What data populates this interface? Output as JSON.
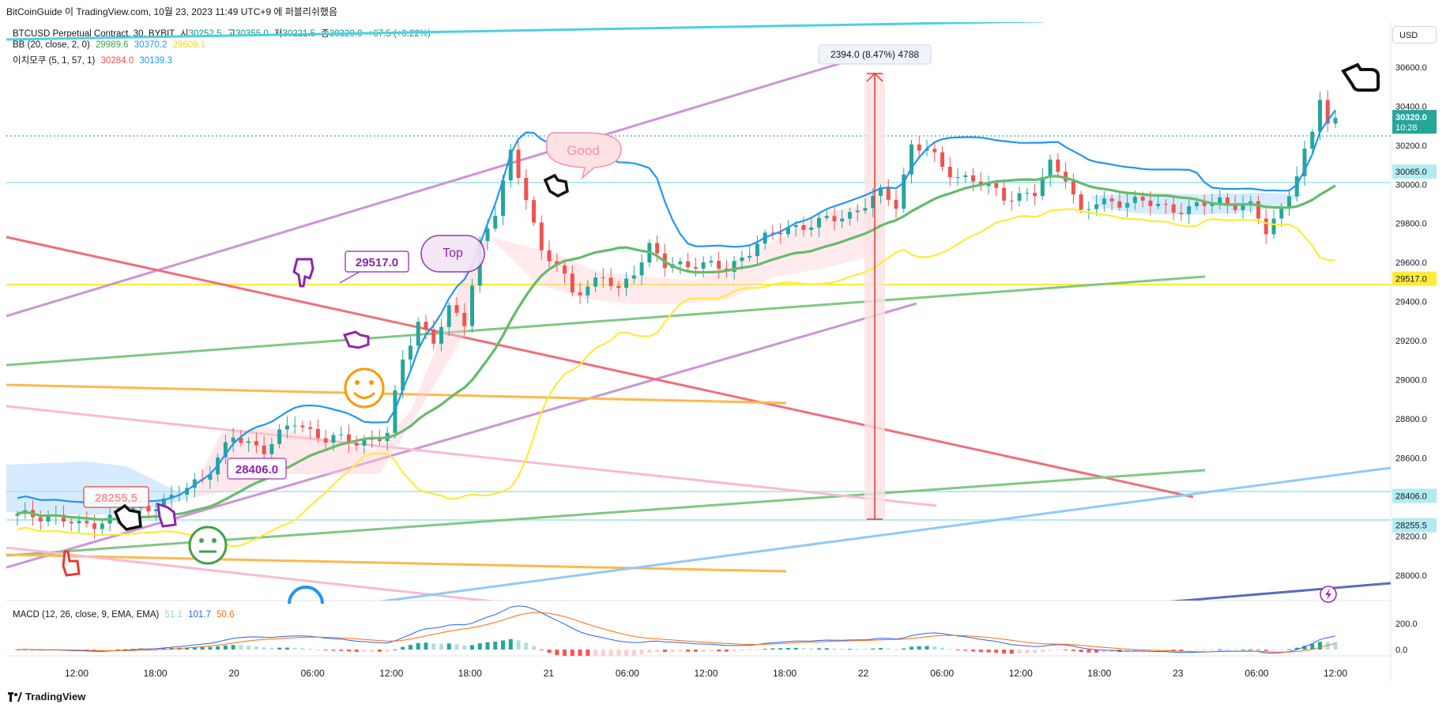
{
  "header": {
    "text": "BitCoinGuide 이 TradingView.com, 10월 23, 2023 11:49 UTC+9 에 퍼블리쉬했음"
  },
  "legend": {
    "symbol": "BTCUSD Perpetual Contract, 30, BYBIT",
    "open_label": "시",
    "open": "30252.5",
    "high_label": "고",
    "high": "30355.0",
    "low_label": "저",
    "low": "30221.5",
    "close_label": "종",
    "close": "30320.0",
    "change": "+67.5 (+0.22%)",
    "bb_label": "BB (20, close, 2, 0)",
    "bb_basis": "29989.6",
    "bb_upper": "30370.2",
    "bb_lower": "29609.1",
    "ichi_label": "이치모쿠 (5, 1, 57, 1)",
    "ichi_a": "30284.0",
    "ichi_b": "30139.3",
    "macd_label": "MACD (12, 26, close, 9, EMA, EMA)",
    "macd_hist": "51.1",
    "macd_macd": "101.7",
    "macd_signal": "50.6"
  },
  "currency": "USD",
  "measure_label": "2394.0 (8.47%) 4788",
  "annotations": {
    "good": "Good",
    "top": "Top",
    "level_29517": "29517.0",
    "level_28406": "28406.0",
    "level_28255": "28255.5"
  },
  "footer": {
    "brand": "TradingView"
  },
  "colors": {
    "up": "#26a69a",
    "down": "#ef5350",
    "bb_basis": "#4caf50",
    "bb_upper": "#2196f3",
    "bb_lower": "#ffeb3b",
    "macd": "#2962ff",
    "signal": "#ff6d00"
  },
  "chart_data": {
    "type": "candlestick",
    "timeframe": "30",
    "x_ticks": [
      "12:00",
      "18:00",
      "20",
      "06:00",
      "12:00",
      "18:00",
      "21",
      "06:00",
      "12:00",
      "18:00",
      "22",
      "06:00",
      "12:00",
      "18:00",
      "23",
      "06:00",
      "12:00"
    ],
    "y_ticks": [
      28000.0,
      28200.0,
      28400.0,
      28600.0,
      28800.0,
      29000.0,
      29200.0,
      29400.0,
      29600.0,
      29800.0,
      30000.0,
      30200.0,
      30400.0,
      30600.0
    ],
    "ylim": [
      27870,
      30830
    ],
    "last_price": "30320.0",
    "countdown": "10:28",
    "price_tags": [
      "30065.0",
      "29517.0",
      "28406.0",
      "28255.5"
    ],
    "close_path": [
      {
        "t": 0,
        "v": 28300
      },
      {
        "t": 4,
        "v": 28310
      },
      {
        "t": 8,
        "v": 28250
      },
      {
        "t": 12,
        "v": 28290
      },
      {
        "t": 16,
        "v": 28340
      },
      {
        "t": 20,
        "v": 28390
      },
      {
        "t": 24,
        "v": 28500
      },
      {
        "t": 28,
        "v": 28700
      },
      {
        "t": 32,
        "v": 28650
      },
      {
        "t": 36,
        "v": 28780
      },
      {
        "t": 40,
        "v": 28700
      },
      {
        "t": 44,
        "v": 28680
      },
      {
        "t": 48,
        "v": 28720
      },
      {
        "t": 50,
        "v": 29100
      },
      {
        "t": 52,
        "v": 29300
      },
      {
        "t": 54,
        "v": 29200
      },
      {
        "t": 56,
        "v": 29350
      },
      {
        "t": 58,
        "v": 29300
      },
      {
        "t": 60,
        "v": 29700
      },
      {
        "t": 62,
        "v": 29850
      },
      {
        "t": 64,
        "v": 30150
      },
      {
        "t": 66,
        "v": 29950
      },
      {
        "t": 68,
        "v": 29650
      },
      {
        "t": 70,
        "v": 29580
      },
      {
        "t": 72,
        "v": 29450
      },
      {
        "t": 76,
        "v": 29520
      },
      {
        "t": 78,
        "v": 29450
      },
      {
        "t": 82,
        "v": 29680
      },
      {
        "t": 84,
        "v": 29580
      },
      {
        "t": 88,
        "v": 29600
      },
      {
        "t": 92,
        "v": 29560
      },
      {
        "t": 96,
        "v": 29700
      },
      {
        "t": 100,
        "v": 29780
      },
      {
        "t": 104,
        "v": 29800
      },
      {
        "t": 108,
        "v": 29850
      },
      {
        "t": 112,
        "v": 29950
      },
      {
        "t": 114,
        "v": 29900
      },
      {
        "t": 116,
        "v": 30200
      },
      {
        "t": 118,
        "v": 30180
      },
      {
        "t": 120,
        "v": 30080
      },
      {
        "t": 124,
        "v": 30020
      },
      {
        "t": 128,
        "v": 29940
      },
      {
        "t": 132,
        "v": 29950
      },
      {
        "t": 134,
        "v": 30100
      },
      {
        "t": 136,
        "v": 30050
      },
      {
        "t": 138,
        "v": 29850
      },
      {
        "t": 140,
        "v": 29900
      },
      {
        "t": 144,
        "v": 29920
      },
      {
        "t": 148,
        "v": 29890
      },
      {
        "t": 152,
        "v": 29870
      },
      {
        "t": 156,
        "v": 29920
      },
      {
        "t": 160,
        "v": 29880
      },
      {
        "t": 162,
        "v": 29760
      },
      {
        "t": 164,
        "v": 29880
      },
      {
        "t": 166,
        "v": 30050
      },
      {
        "t": 168,
        "v": 30250
      },
      {
        "t": 169,
        "v": 30450
      },
      {
        "t": 170,
        "v": 30320
      }
    ],
    "measure": {
      "from": 28255.5,
      "to": 30649.5,
      "change": 2394.0,
      "percent": 8.47,
      "bars": 4788
    },
    "macd_ticks": [
      200.0,
      0.0
    ]
  }
}
